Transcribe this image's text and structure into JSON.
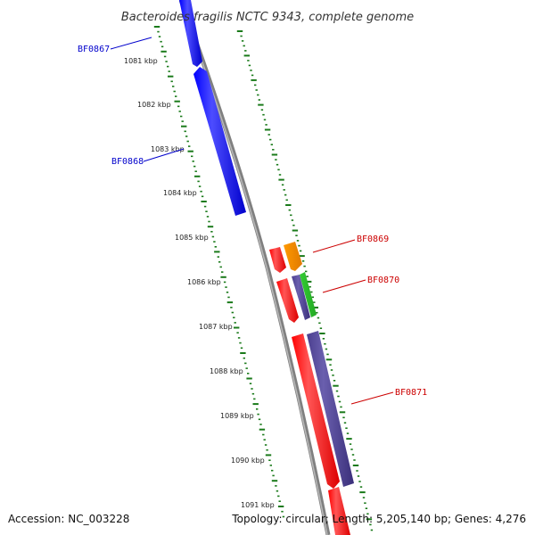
{
  "title": "Bacteroides fragilis NCTC 9343, complete genome",
  "accession": "Accession: NC_003228",
  "summary": "Topology: circular; Length: 5,205,140 bp; Genes: 4,276",
  "ticks": [
    "1081 kbp",
    "1082 kbp",
    "1083 kbp",
    "1084 kbp",
    "1085 kbp",
    "1086 kbp",
    "1087 kbp",
    "1088 kbp",
    "1089 kbp",
    "1090 kbp",
    "1091 kbp"
  ],
  "gene_labels": {
    "bf0867": "BF0867",
    "bf0868": "BF0868",
    "bf0869": "BF0869",
    "bf0870": "BF0870",
    "bf0871": "BF0871"
  },
  "colors": {
    "forward": "#0000ff",
    "reverse": "#ff0000",
    "orange": "#ff9900",
    "green": "#33cc33",
    "slate": "#4b3f8f",
    "backbone": "#808080",
    "ticks": "#1a7a1a",
    "label_blue": "#0000cc",
    "label_red": "#cc0000"
  }
}
